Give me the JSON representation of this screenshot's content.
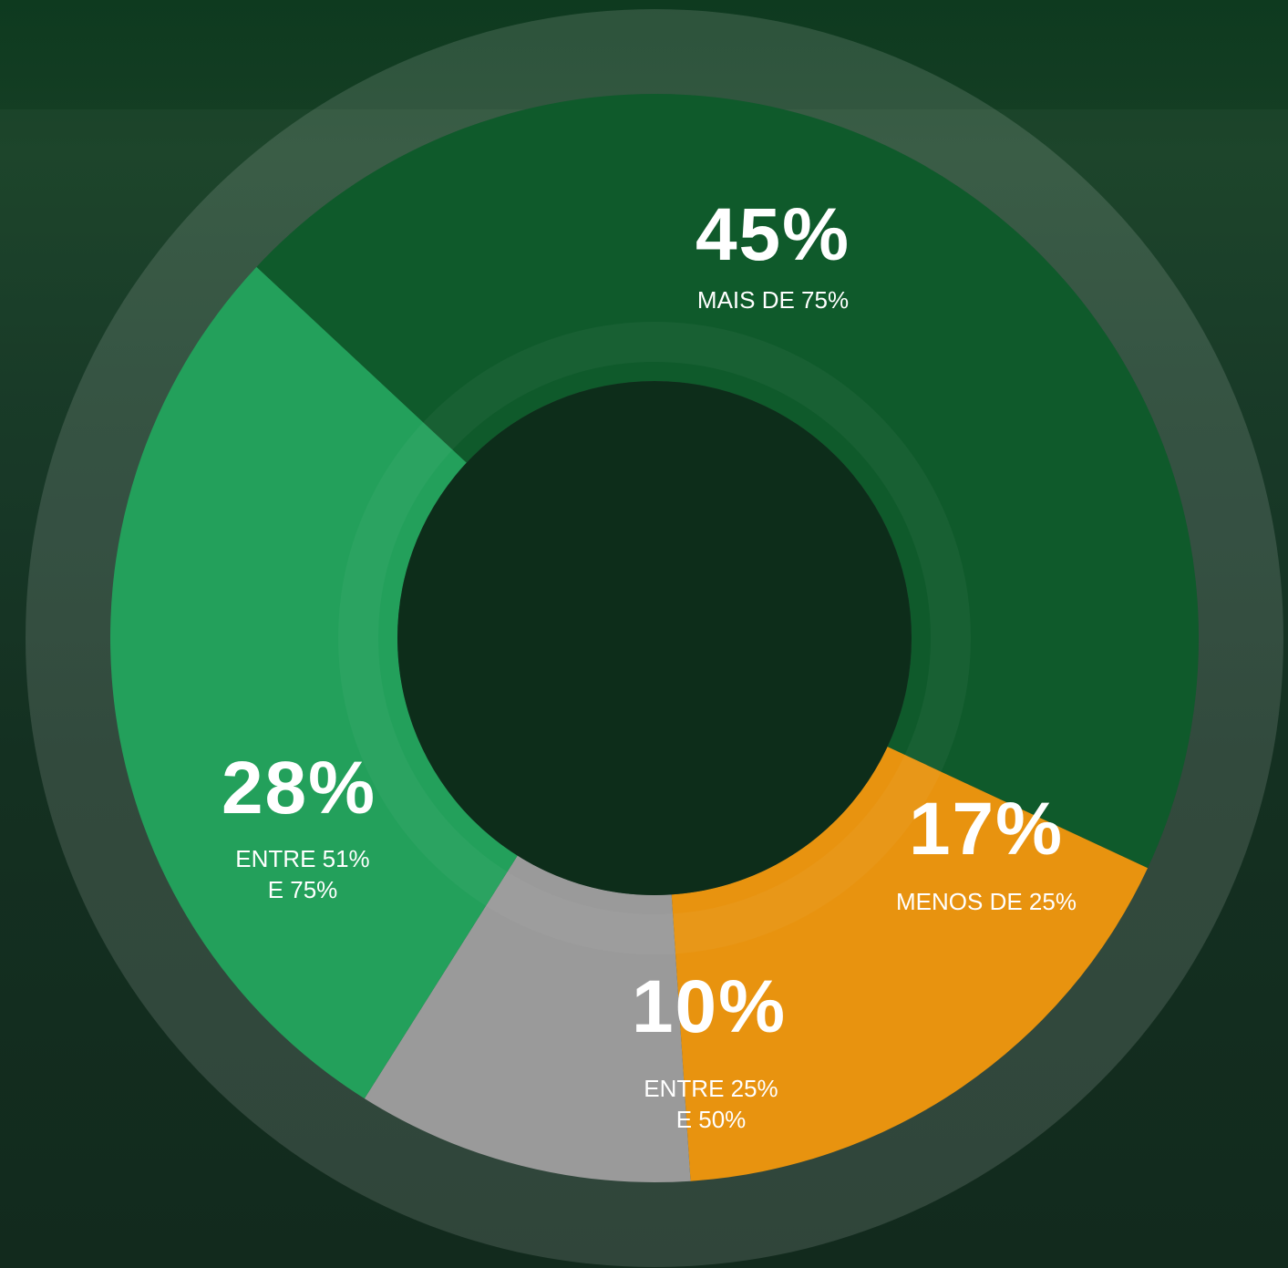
{
  "chart_data": {
    "type": "donut",
    "categories": [
      "MAIS DE 75%",
      "MENOS DE 25%",
      "ENTRE 25% E 50%",
      "ENTRE 51% E 75%"
    ],
    "values": [
      45,
      17,
      10,
      28
    ],
    "value_labels": [
      "45%",
      "17%",
      "10%",
      "28%"
    ],
    "colors": [
      "#0f5a2b",
      "#e8930f",
      "#9a9a9a",
      "#23a05b"
    ]
  }
}
